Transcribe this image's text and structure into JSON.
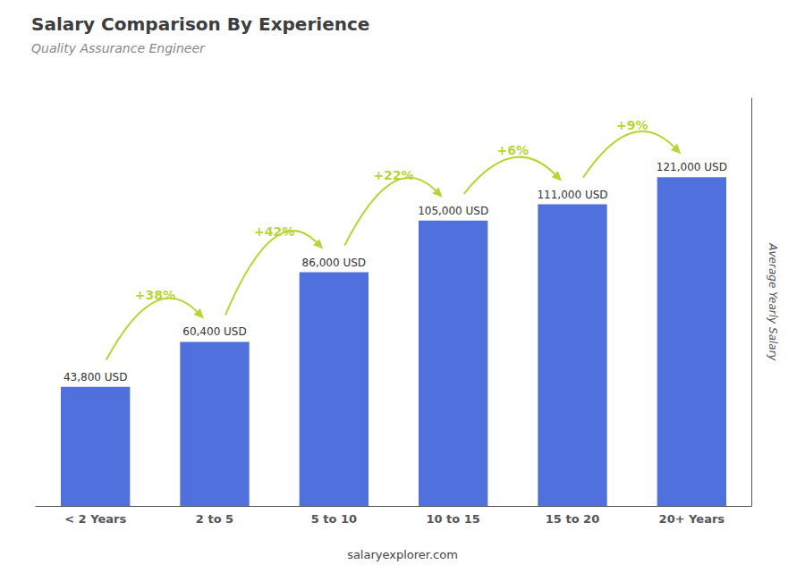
{
  "chart_data": {
    "type": "bar",
    "title": "Salary Comparison By Experience",
    "subtitle": "Quality Assurance Engineer",
    "ylabel": "Average Yearly Salary",
    "categories": [
      "< 2 Years",
      "2 to 5",
      "5 to 10",
      "10 to 15",
      "15 to 20",
      "20+ Years"
    ],
    "values": [
      43800,
      60400,
      86000,
      105000,
      111000,
      121000
    ],
    "value_labels": [
      "43,800 USD",
      "60,400 USD",
      "86,000 USD",
      "105,000 USD",
      "111,000 USD",
      "121,000 USD"
    ],
    "data_labels": true,
    "annotations": [
      "+38%",
      "+42%",
      "+22%",
      "+6%",
      "+9%"
    ],
    "source": "salaryexplorer.com",
    "ylim": [
      0,
      150000
    ],
    "tick_labels": "x",
    "grid": false
  }
}
